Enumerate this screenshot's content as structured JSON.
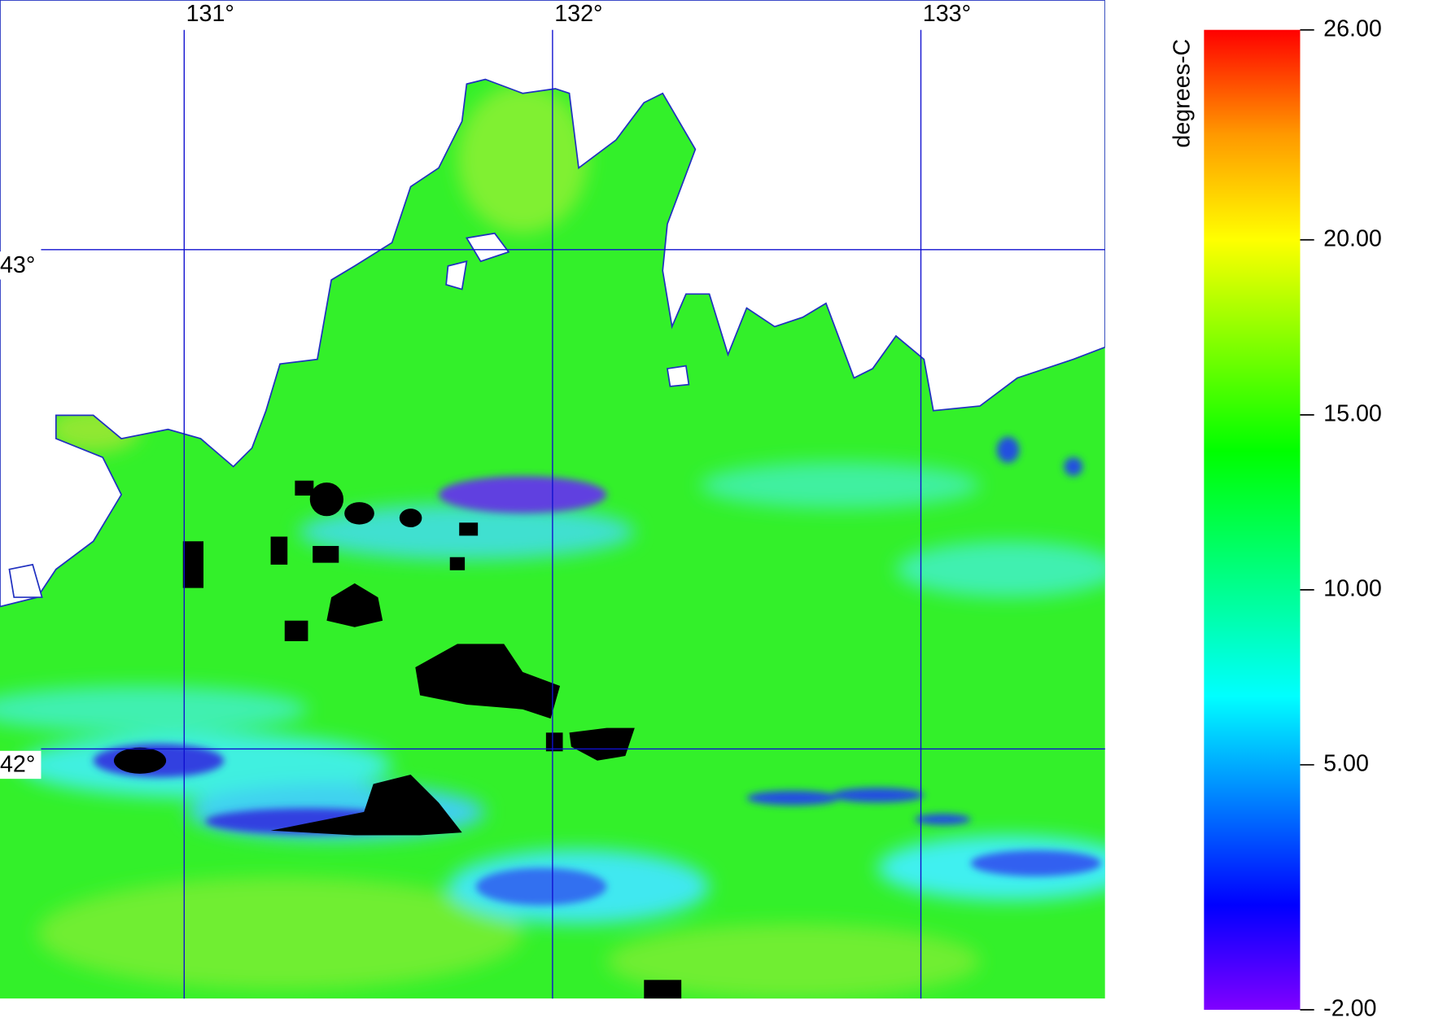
{
  "map": {
    "xlim": [
      130.5,
      133.5
    ],
    "ylim": [
      41.5,
      43.5
    ],
    "lon_ticks": [
      {
        "value": 131,
        "label": "131°"
      },
      {
        "value": 132,
        "label": "132°"
      },
      {
        "value": 133,
        "label": "133°"
      }
    ],
    "lat_ticks": [
      {
        "value": 43,
        "label": "43°"
      },
      {
        "value": 42,
        "label": "42°"
      }
    ],
    "colorbar": {
      "label": "degrees-C",
      "lim": [
        -2,
        26
      ],
      "ticks": [
        {
          "value": 26,
          "label": "26.00"
        },
        {
          "value": 20,
          "label": "20.00"
        },
        {
          "value": 15,
          "label": "15.00"
        },
        {
          "value": 10,
          "label": "10.00"
        },
        {
          "value": 5,
          "label": "5.00"
        },
        {
          "value": -2,
          "label": "-2.00"
        }
      ]
    }
  }
}
